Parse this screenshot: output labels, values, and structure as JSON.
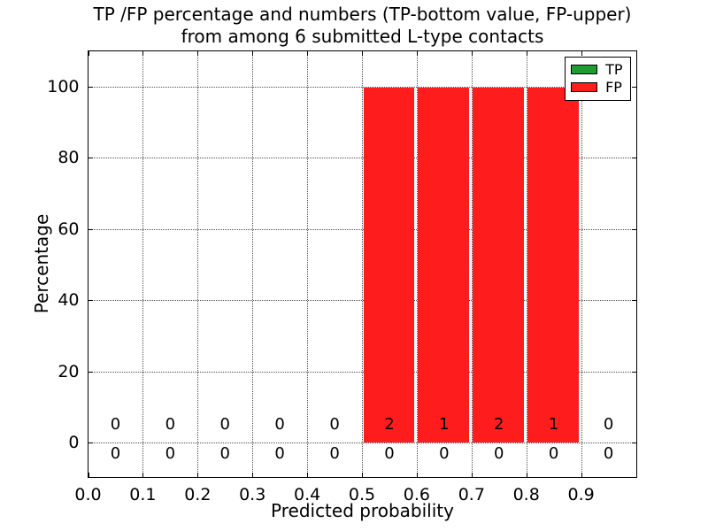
{
  "title": {
    "line1": "TP /FP percentage and numbers (TP-bottom value, FP-upper)",
    "line2": "from among 6 submitted L-type contacts"
  },
  "chart_data": {
    "type": "bar",
    "title": "TP /FP percentage and numbers (TP-bottom value, FP-upper) from among 6 submitted L-type contacts",
    "xlabel": "Predicted probability",
    "ylabel": "Percentage",
    "xlim": [
      0.0,
      1.0
    ],
    "ylim": [
      -9.5,
      110
    ],
    "grid": true,
    "x_ticks": [
      {
        "value": 0.0,
        "label": "0.0"
      },
      {
        "value": 0.1,
        "label": "0.1"
      },
      {
        "value": 0.2,
        "label": "0.2"
      },
      {
        "value": 0.3,
        "label": "0.3"
      },
      {
        "value": 0.4,
        "label": "0.4"
      },
      {
        "value": 0.5,
        "label": "0.5"
      },
      {
        "value": 0.6,
        "label": "0.6"
      },
      {
        "value": 0.7,
        "label": "0.7"
      },
      {
        "value": 0.8,
        "label": "0.8"
      },
      {
        "value": 0.9,
        "label": "0.9"
      }
    ],
    "y_ticks": [
      {
        "value": 0,
        "label": "0"
      },
      {
        "value": 20,
        "label": "20"
      },
      {
        "value": 40,
        "label": "40"
      },
      {
        "value": 60,
        "label": "60"
      },
      {
        "value": 80,
        "label": "80"
      },
      {
        "value": 100,
        "label": "100"
      }
    ],
    "bins": {
      "edges": [
        0.0,
        0.1,
        0.2,
        0.3,
        0.4,
        0.5,
        0.6,
        0.7,
        0.8,
        0.9,
        1.0
      ],
      "centers": [
        0.05,
        0.15,
        0.25,
        0.35,
        0.45,
        0.55,
        0.65,
        0.75,
        0.85,
        0.95
      ]
    },
    "series": [
      {
        "name": "TP",
        "color": "#1e9b32",
        "percent": [
          0,
          0,
          0,
          0,
          0,
          0,
          0,
          0,
          0,
          0
        ],
        "counts": [
          0,
          0,
          0,
          0,
          0,
          0,
          0,
          0,
          0,
          0
        ],
        "count_row": "bottom"
      },
      {
        "name": "FP",
        "color": "#ff1c1c",
        "percent": [
          0,
          0,
          0,
          0,
          0,
          100,
          100,
          100,
          100,
          0
        ],
        "counts": [
          0,
          0,
          0,
          0,
          0,
          2,
          1,
          2,
          1,
          0
        ],
        "count_row": "top"
      }
    ],
    "legend": {
      "position": "upper right",
      "entries": [
        "TP",
        "FP"
      ]
    }
  }
}
